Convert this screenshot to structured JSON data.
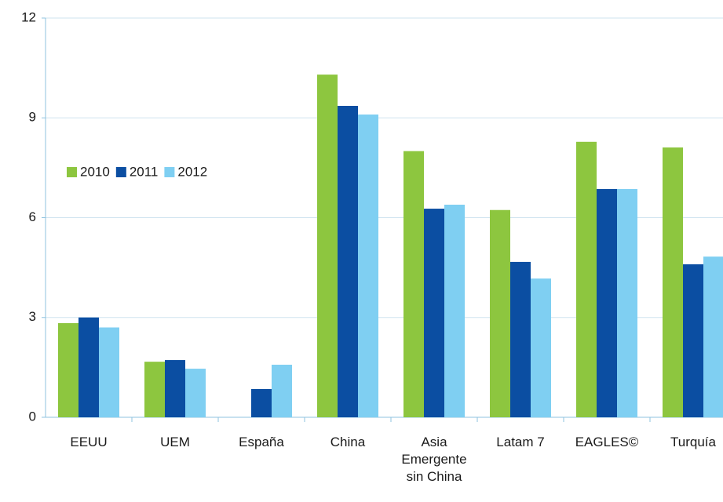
{
  "chart_data": {
    "type": "bar",
    "categories": [
      "EEUU",
      "UEM",
      "España",
      "China",
      "Asia\nEmergente\nsin China",
      "Latam 7",
      "EAGLES©",
      "Turquía"
    ],
    "series": [
      {
        "name": "2010",
        "color": "#8dc63f",
        "values": [
          2.83,
          1.67,
          null,
          10.3,
          8.0,
          6.23,
          8.28,
          8.11
        ]
      },
      {
        "name": "2011",
        "color": "#0b4ea2",
        "values": [
          3.0,
          1.72,
          0.85,
          9.36,
          6.27,
          4.67,
          6.86,
          4.6
        ]
      },
      {
        "name": "2012",
        "color": "#7fcff2",
        "values": [
          2.7,
          1.46,
          1.58,
          9.1,
          6.39,
          4.17,
          6.86,
          4.83
        ]
      }
    ],
    "ylim": [
      0,
      12
    ],
    "yticks": [
      0,
      3,
      6,
      9,
      12
    ],
    "grid": true
  }
}
